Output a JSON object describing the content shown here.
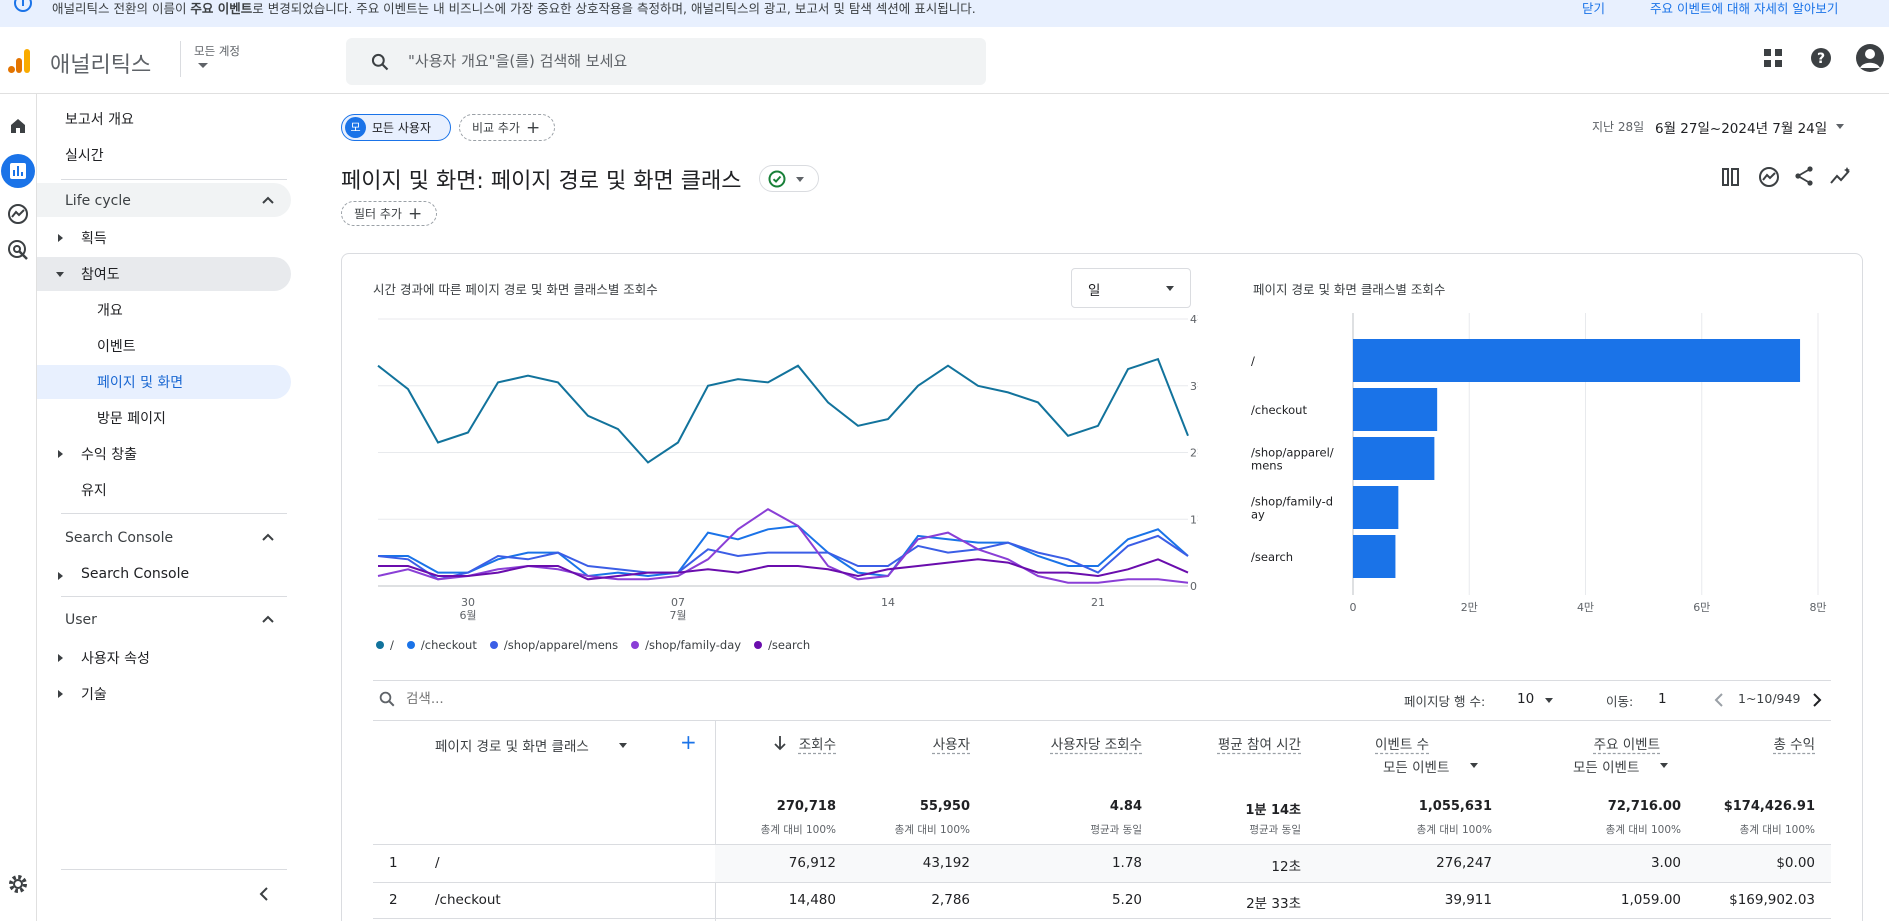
{
  "banner": {
    "message_pre": "애널리틱스 전환의 이름이 ",
    "message_bold": "주요 이벤트",
    "message_post": "로 변경되었습니다. 주요 이벤트는 내 비즈니스에 가장 중요한 상호작용을 측정하며, 애널리틱스의 광고, 보고서 및 탐색 섹션에 표시됩니다.",
    "dismiss": "닫기",
    "learn_more": "주요 이벤트에 대해 자세히 알아보기"
  },
  "header": {
    "app_name": "애널리틱스",
    "account": "모든 계정",
    "search_placeholder": "\"사용자 개요\"을(를) 검색해 보세요"
  },
  "nav": {
    "reports_overview": "보고서 개요",
    "realtime": "실시간",
    "section_lifecycle": "Life cycle",
    "acquisition": "획득",
    "engagement": "참여도",
    "eng_overview": "개요",
    "eng_events": "이벤트",
    "eng_pages": "페이지 및 화면",
    "eng_landing": "방문 페이지",
    "monetization": "수익 창출",
    "retention": "유지",
    "section_search_console": "Search Console",
    "search_console": "Search Console",
    "section_user": "User",
    "user_attributes": "사용자 속성",
    "tech": "기술"
  },
  "toolbar": {
    "segment_avatar": "모",
    "segment": "모든 사용자",
    "add_compare": "비교 추가",
    "date_prefix": "지난 28일",
    "date_range": "6월 27일~2024년 7월 24일",
    "add_filter": "필터 추가"
  },
  "page": {
    "title": "페이지 및 화면: 페이지 경로 및 화면 클래스"
  },
  "line_chart_title": "시간 경과에 따른 페이지 경로 및 화면 클래스별 조회수",
  "granularity": "일",
  "bar_chart_title": "페이지 경로 및 화면 클래스별 조회수",
  "colors": {
    "s1": "#12739c",
    "s2": "#1a73e8",
    "s3": "#3b5ee6",
    "s4": "#8a3fd6",
    "s5": "#6a0dad",
    "bar": "#1a73e8",
    "accent": "#1a73e8"
  },
  "chart_data": [
    {
      "type": "line",
      "title": "시간 경과에 따른 페이지 경로 및 화면 클래스별 조회수",
      "x": [
        "6월 27",
        "28",
        "29",
        "30",
        "7월 1",
        "2",
        "3",
        "4",
        "5",
        "6",
        "7",
        "8",
        "9",
        "10",
        "11",
        "12",
        "13",
        "14",
        "15",
        "16",
        "17",
        "18",
        "19",
        "20",
        "21",
        "22",
        "23",
        "24"
      ],
      "x_tick_labels": [
        {
          "day": "30",
          "month": "6월"
        },
        {
          "day": "07",
          "month": "7월"
        },
        {
          "day": "14",
          "month": ""
        },
        {
          "day": "21",
          "month": ""
        }
      ],
      "y_ticks": [
        "0",
        "1천",
        "2천",
        "3천",
        "4천"
      ],
      "ylim": [
        0,
        4000
      ],
      "series": [
        {
          "name": "/",
          "values": [
            3300,
            2950,
            2150,
            2300,
            3050,
            3150,
            3050,
            2550,
            2350,
            1850,
            2150,
            3000,
            3100,
            3050,
            3300,
            2750,
            2400,
            2500,
            3000,
            3300,
            3000,
            2900,
            2750,
            2250,
            2400,
            3250,
            3400,
            2250
          ]
        },
        {
          "name": "/checkout",
          "values": [
            450,
            450,
            200,
            200,
            400,
            500,
            500,
            150,
            200,
            150,
            200,
            800,
            700,
            850,
            900,
            500,
            200,
            150,
            750,
            700,
            650,
            650,
            450,
            300,
            300,
            700,
            850,
            450
          ]
        },
        {
          "name": "/shop/apparel/mens",
          "values": [
            450,
            400,
            100,
            200,
            450,
            400,
            500,
            300,
            250,
            200,
            200,
            550,
            450,
            500,
            500,
            500,
            300,
            300,
            600,
            500,
            550,
            650,
            500,
            400,
            200,
            600,
            750,
            450
          ]
        },
        {
          "name": "/shop/family-day",
          "values": [
            150,
            250,
            100,
            150,
            250,
            300,
            250,
            150,
            100,
            100,
            150,
            400,
            850,
            1150,
            900,
            300,
            100,
            150,
            700,
            800,
            550,
            400,
            150,
            50,
            50,
            100,
            100,
            50
          ]
        },
        {
          "name": "/search",
          "values": [
            300,
            300,
            150,
            150,
            200,
            300,
            300,
            100,
            150,
            200,
            200,
            250,
            200,
            300,
            300,
            250,
            150,
            250,
            300,
            350,
            400,
            350,
            200,
            200,
            150,
            250,
            400,
            200
          ]
        }
      ]
    },
    {
      "type": "bar",
      "orientation": "horizontal",
      "title": "페이지 경로 및 화면 클래스별 조회수",
      "categories": [
        "/",
        "/checkout",
        "/shop/apparel/ mens",
        "/shop/family-d ay",
        "/search"
      ],
      "values": [
        76912,
        14480,
        14000,
        7800,
        7300
      ],
      "x_ticks": [
        "0",
        "2만",
        "4만",
        "6만",
        "8만"
      ],
      "xlim": [
        0,
        80000
      ]
    }
  ],
  "table": {
    "search_placeholder": "검색...",
    "rows_per_page_label": "페이지당 행 수:",
    "rows_per_page": "10",
    "goto_label": "이동:",
    "goto_value": "1",
    "range": "1~10/949",
    "dim_header": "페이지 경로 및 화면 클래스",
    "columns": [
      "조회수",
      "사용자",
      "사용자당 조회수",
      "평균 참여 시간",
      "이벤트 수",
      "주요 이벤트",
      "총 수익"
    ],
    "event_filter": "모든 이벤트",
    "key_event_filter": "모든 이벤트",
    "totals": [
      "270,718",
      "55,950",
      "4.84",
      "1분 14초",
      "1,055,631",
      "72,716.00",
      "$174,426.91"
    ],
    "totals_sub": [
      "총계 대비 100%",
      "총계 대비 100%",
      "평균과 동일",
      "평균과 동일",
      "총계 대비 100%",
      "총계 대비 100%",
      "총계 대비 100%"
    ],
    "rows": [
      {
        "idx": "1",
        "path": "/",
        "values": [
          "76,912",
          "43,192",
          "1.78",
          "12초",
          "276,247",
          "3.00",
          "$0.00"
        ]
      },
      {
        "idx": "2",
        "path": "/checkout",
        "values": [
          "14,480",
          "2,786",
          "5.20",
          "2분 33초",
          "39,911",
          "1,059.00",
          "$169,902.03"
        ]
      }
    ]
  }
}
